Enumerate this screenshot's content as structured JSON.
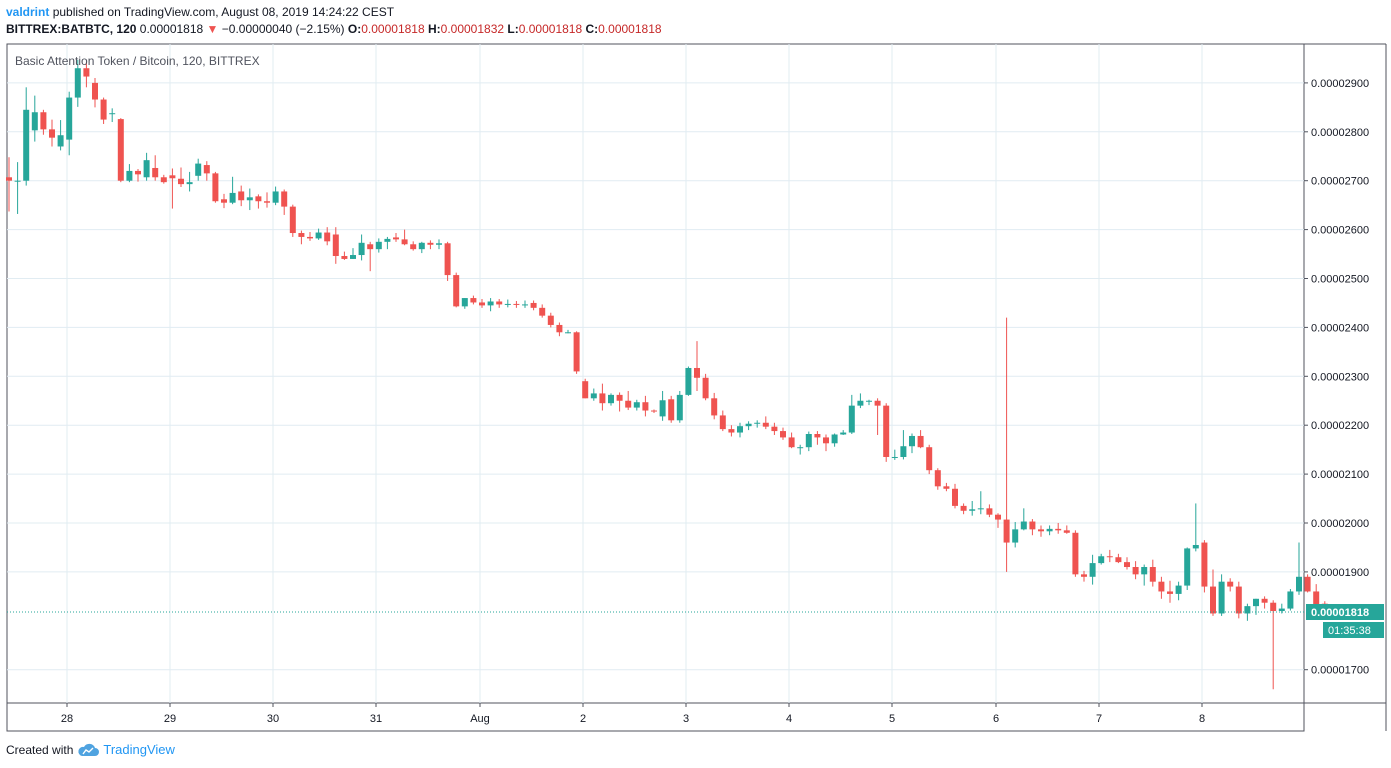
{
  "header": {
    "user": "valdrint",
    "published": "published on TradingView.com, August 08, 2019 14:24:22 CEST",
    "symbol": "BITTREX:BATBTC, 120",
    "last": "0.00001818",
    "down_arrow": "▼",
    "change": "−0.00000040 (−2.15%)",
    "o_label": "O:",
    "o_value": "0.00001818",
    "h_label": "H:",
    "h_value": "0.00001832",
    "l_label": "L:",
    "l_value": "0.00001818",
    "c_label": "C:",
    "c_value": "0.00001818"
  },
  "footer": {
    "created_with": "Created with",
    "brand": "TradingView"
  },
  "colors": {
    "up": "#26a69a",
    "down": "#ef5350",
    "grid": "#e1ecf2",
    "axis": "#50535e",
    "price_line": "#26a69a"
  },
  "chart_data": {
    "type": "candlestick",
    "title": "Basic Attention Token / Bitcoin, 120, BITTREX",
    "interval_minutes": 120,
    "ylim": [
      1.64e-05,
      2.99e-05
    ],
    "y_ticks": [
      "0.00002900",
      "0.00002800",
      "0.00002700",
      "0.00002600",
      "0.00002500",
      "0.00002400",
      "0.00002300",
      "0.00002200",
      "0.00002100",
      "0.00002000",
      "0.00001900",
      "0.00001700"
    ],
    "x_ticks": [
      "28",
      "29",
      "30",
      "31",
      "Aug",
      "2",
      "3",
      "4",
      "5",
      "6",
      "7",
      "8"
    ],
    "last_price_label": "0.00001818",
    "countdown_label": "01:35:38",
    "candles": [
      [
        2.707,
        2.748,
        2.637,
        2.7
      ],
      [
        2.7,
        2.738,
        2.632,
        2.7
      ],
      [
        2.7,
        2.891,
        2.69,
        2.845
      ],
      [
        2.803,
        2.874,
        2.78,
        2.84
      ],
      [
        2.84,
        2.845,
        2.794,
        2.805
      ],
      [
        2.805,
        2.825,
        2.77,
        2.788
      ],
      [
        2.77,
        2.824,
        2.762,
        2.793
      ],
      [
        2.784,
        2.882,
        2.752,
        2.87
      ],
      [
        2.87,
        2.947,
        2.851,
        2.93
      ],
      [
        2.93,
        2.942,
        2.891,
        2.913
      ],
      [
        2.9,
        2.91,
        2.85,
        2.866
      ],
      [
        2.866,
        2.87,
        2.816,
        2.825
      ],
      [
        2.836,
        2.848,
        2.82,
        2.838
      ],
      [
        2.826,
        2.828,
        2.697,
        2.7
      ],
      [
        2.7,
        2.734,
        2.697,
        2.72
      ],
      [
        2.72,
        2.724,
        2.698,
        2.713
      ],
      [
        2.707,
        2.757,
        2.7,
        2.742
      ],
      [
        2.726,
        2.752,
        2.7,
        2.707
      ],
      [
        2.707,
        2.712,
        2.694,
        2.697
      ],
      [
        2.711,
        2.725,
        2.643,
        2.705
      ],
      [
        2.704,
        2.727,
        2.687,
        2.693
      ],
      [
        2.693,
        2.718,
        2.678,
        2.697
      ],
      [
        2.71,
        2.745,
        2.7,
        2.735
      ],
      [
        2.732,
        2.74,
        2.7,
        2.715
      ],
      [
        2.715,
        2.718,
        2.655,
        2.658
      ],
      [
        2.662,
        2.673,
        2.644,
        2.655
      ],
      [
        2.655,
        2.708,
        2.652,
        2.675
      ],
      [
        2.678,
        2.69,
        2.648,
        2.66
      ],
      [
        2.66,
        2.684,
        2.64,
        2.666
      ],
      [
        2.668,
        2.672,
        2.643,
        2.658
      ],
      [
        2.658,
        2.676,
        2.645,
        2.655
      ],
      [
        2.655,
        2.688,
        2.65,
        2.678
      ],
      [
        2.678,
        2.682,
        2.63,
        2.647
      ],
      [
        2.647,
        2.651,
        2.585,
        2.593
      ],
      [
        2.593,
        2.598,
        2.57,
        2.585
      ],
      [
        2.585,
        2.595,
        2.577,
        2.582
      ],
      [
        2.582,
        2.602,
        2.579,
        2.594
      ],
      [
        2.594,
        2.605,
        2.568,
        2.576
      ],
      [
        2.59,
        2.605,
        2.53,
        2.546
      ],
      [
        2.546,
        2.555,
        2.538,
        2.54
      ],
      [
        2.54,
        2.562,
        2.54,
        2.548
      ],
      [
        2.548,
        2.59,
        2.537,
        2.573
      ],
      [
        2.57,
        2.575,
        2.515,
        2.56
      ],
      [
        2.56,
        2.582,
        2.553,
        2.575
      ],
      [
        2.575,
        2.585,
        2.56,
        2.581
      ],
      [
        2.584,
        2.593,
        2.575,
        2.58
      ],
      [
        2.58,
        2.6,
        2.568,
        2.57
      ],
      [
        2.57,
        2.576,
        2.557,
        2.56
      ],
      [
        2.56,
        2.575,
        2.552,
        2.573
      ],
      [
        2.573,
        2.578,
        2.56,
        2.569
      ],
      [
        2.569,
        2.58,
        2.56,
        2.572
      ],
      [
        2.572,
        2.575,
        2.495,
        2.507
      ],
      [
        2.507,
        2.512,
        2.441,
        2.443
      ],
      [
        2.443,
        2.46,
        2.438,
        2.46
      ],
      [
        2.46,
        2.465,
        2.447,
        2.451
      ],
      [
        2.451,
        2.458,
        2.44,
        2.445
      ],
      [
        2.445,
        2.46,
        2.433,
        2.453
      ],
      [
        2.453,
        2.458,
        2.44,
        2.447
      ],
      [
        2.447,
        2.457,
        2.441,
        2.448
      ],
      [
        2.448,
        2.454,
        2.44,
        2.446
      ],
      [
        2.446,
        2.455,
        2.44,
        2.447
      ],
      [
        2.45,
        2.455,
        2.435,
        2.44
      ],
      [
        2.44,
        2.447,
        2.42,
        2.424
      ],
      [
        2.424,
        2.43,
        2.4,
        2.405
      ],
      [
        2.405,
        2.41,
        2.382,
        2.39
      ],
      [
        2.39,
        2.395,
        2.388,
        2.39
      ],
      [
        2.39,
        2.392,
        2.305,
        2.31
      ],
      [
        2.29,
        2.295,
        2.255,
        2.255
      ],
      [
        2.255,
        2.275,
        2.25,
        2.265
      ],
      [
        2.265,
        2.285,
        2.23,
        2.245
      ],
      [
        2.245,
        2.265,
        2.24,
        2.262
      ],
      [
        2.262,
        2.267,
        2.228,
        2.25
      ],
      [
        2.25,
        2.27,
        2.231,
        2.236
      ],
      [
        2.236,
        2.252,
        2.23,
        2.247
      ],
      [
        2.247,
        2.26,
        2.218,
        2.23
      ],
      [
        2.23,
        2.232,
        2.225,
        2.228
      ],
      [
        2.218,
        2.27,
        2.209,
        2.251
      ],
      [
        2.253,
        2.26,
        2.205,
        2.21
      ],
      [
        2.21,
        2.27,
        2.205,
        2.262
      ],
      [
        2.262,
        2.32,
        2.26,
        2.317
      ],
      [
        2.317,
        2.372,
        2.27,
        2.297
      ],
      [
        2.297,
        2.305,
        2.251,
        2.255
      ],
      [
        2.255,
        2.266,
        2.212,
        2.22
      ],
      [
        2.22,
        2.23,
        2.188,
        2.192
      ],
      [
        2.192,
        2.2,
        2.177,
        2.185
      ],
      [
        2.185,
        2.205,
        2.175,
        2.198
      ],
      [
        2.198,
        2.208,
        2.19,
        2.203
      ],
      [
        2.203,
        2.21,
        2.195,
        2.205
      ],
      [
        2.205,
        2.218,
        2.192,
        2.197
      ],
      [
        2.197,
        2.205,
        2.18,
        2.188
      ],
      [
        2.188,
        2.195,
        2.17,
        2.175
      ],
      [
        2.175,
        2.185,
        2.153,
        2.155
      ],
      [
        2.155,
        2.16,
        2.14,
        2.155
      ],
      [
        2.155,
        2.187,
        2.147,
        2.182
      ],
      [
        2.182,
        2.188,
        2.16,
        2.175
      ],
      [
        2.175,
        2.181,
        2.147,
        2.163
      ],
      [
        2.163,
        2.183,
        2.156,
        2.181
      ],
      [
        2.181,
        2.19,
        2.18,
        2.185
      ],
      [
        2.185,
        2.262,
        2.182,
        2.24
      ],
      [
        2.24,
        2.265,
        2.235,
        2.25
      ],
      [
        2.25,
        2.252,
        2.241,
        2.25
      ],
      [
        2.25,
        2.255,
        2.18,
        2.24
      ],
      [
        2.24,
        2.245,
        2.125,
        2.135
      ],
      [
        2.135,
        2.15,
        2.129,
        2.135
      ],
      [
        2.135,
        2.19,
        2.13,
        2.157
      ],
      [
        2.157,
        2.183,
        2.143,
        2.178
      ],
      [
        2.178,
        2.19,
        2.153,
        2.155
      ],
      [
        2.155,
        2.16,
        2.1,
        2.108
      ],
      [
        2.108,
        2.112,
        2.068,
        2.075
      ],
      [
        2.075,
        2.082,
        2.065,
        2.07
      ],
      [
        2.07,
        2.08,
        2.03,
        2.035
      ],
      [
        2.035,
        2.04,
        2.018,
        2.025
      ],
      [
        2.025,
        2.045,
        2.015,
        2.028
      ],
      [
        2.028,
        2.065,
        2.018,
        2.03
      ],
      [
        2.03,
        2.038,
        2.012,
        2.017
      ],
      [
        2.017,
        2.02,
        1.99,
        2.007
      ],
      [
        2.007,
        2.42,
        1.9,
        1.96
      ],
      [
        1.96,
        2.002,
        1.95,
        1.987
      ],
      [
        1.987,
        2.03,
        1.985,
        2.003
      ],
      [
        2.003,
        2.008,
        1.975,
        1.987
      ],
      [
        1.987,
        1.995,
        1.972,
        1.983
      ],
      [
        1.983,
        1.995,
        1.975,
        1.988
      ],
      [
        1.988,
        2.0,
        1.978,
        1.985
      ],
      [
        1.985,
        1.995,
        1.978,
        1.98
      ],
      [
        1.98,
        1.985,
        1.89,
        1.895
      ],
      [
        1.895,
        1.902,
        1.88,
        1.89
      ],
      [
        1.89,
        1.935,
        1.874,
        1.918
      ],
      [
        1.918,
        1.937,
        1.915,
        1.932
      ],
      [
        1.932,
        1.945,
        1.92,
        1.93
      ],
      [
        1.93,
        1.937,
        1.918,
        1.92
      ],
      [
        1.92,
        1.93,
        1.905,
        1.91
      ],
      [
        1.91,
        1.922,
        1.885,
        1.895
      ],
      [
        1.895,
        1.915,
        1.872,
        1.91
      ],
      [
        1.91,
        1.925,
        1.87,
        1.88
      ],
      [
        1.88,
        1.89,
        1.845,
        1.86
      ],
      [
        1.86,
        1.882,
        1.837,
        1.855
      ],
      [
        1.855,
        1.88,
        1.842,
        1.872
      ],
      [
        1.872,
        1.95,
        1.863,
        1.948
      ],
      [
        1.948,
        2.04,
        1.942,
        1.955
      ],
      [
        1.96,
        1.965,
        1.858,
        1.87
      ],
      [
        1.87,
        1.905,
        1.81,
        1.815
      ],
      [
        1.815,
        1.895,
        1.81,
        1.88
      ],
      [
        1.88,
        1.887,
        1.86,
        1.87
      ],
      [
        1.87,
        1.88,
        1.805,
        1.815
      ],
      [
        1.815,
        1.835,
        1.8,
        1.83
      ],
      [
        1.83,
        1.845,
        1.812,
        1.845
      ],
      [
        1.845,
        1.85,
        1.825,
        1.837
      ],
      [
        1.837,
        1.842,
        1.66,
        1.82
      ],
      [
        1.82,
        1.835,
        1.815,
        1.825
      ],
      [
        1.825,
        1.865,
        1.821,
        1.86
      ],
      [
        1.86,
        1.96,
        1.853,
        1.89
      ],
      [
        1.89,
        1.895,
        1.858,
        1.86
      ],
      [
        1.86,
        1.875,
        1.822,
        1.83
      ],
      [
        1.835,
        1.84,
        1.818,
        1.822
      ],
      [
        1.818,
        1.832,
        1.818,
        1.818
      ]
    ]
  }
}
